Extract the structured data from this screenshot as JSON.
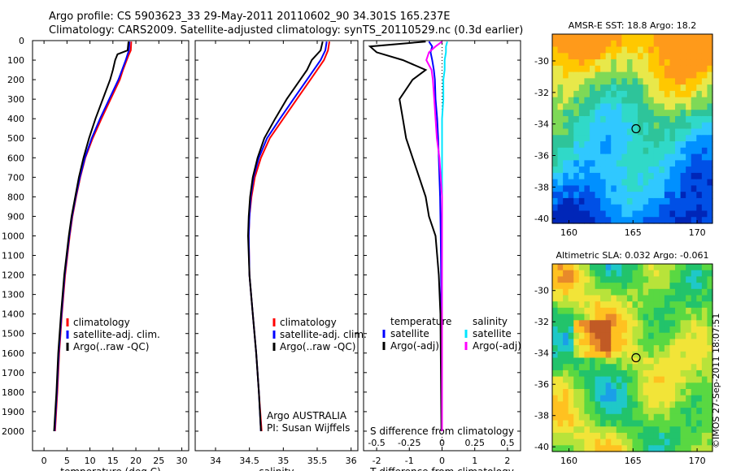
{
  "header": {
    "title_line1": "Argo profile: CS 5903623_33 29-May-2011 20110602_90 34.301S 165.237E",
    "title_line2": "Climatology: CARS2009. Satellite-adjusted climatology: synTS_20110529.nc (0.3d earlier)"
  },
  "footer": {
    "stamp": "©IMOS 27-Sep-2011 18:07:51",
    "argo_label": "Argo AUSTRALIA",
    "pi_label": "PI: Susan Wijffels"
  },
  "colors": {
    "climatology": "#ff0000",
    "satellite": "#0000ff",
    "argo": "#000000",
    "salinity_satellite": "#00e5ff",
    "salinity_argo": "#ff00ff"
  },
  "depth_ticks": [
    0,
    100,
    200,
    300,
    400,
    500,
    600,
    700,
    800,
    900,
    1000,
    1100,
    1200,
    1300,
    1400,
    1500,
    1600,
    1700,
    1800,
    1900,
    2000
  ],
  "chart_data": [
    {
      "id": "temperature",
      "type": "line",
      "xlabel": "temperature (deg C)",
      "ylabel": "",
      "xlim": [
        -2.5,
        31.5
      ],
      "ylim": [
        2100,
        0
      ],
      "xticks": [
        0,
        5,
        10,
        15,
        20,
        25,
        30
      ],
      "legend": [
        "climatology",
        "satellite-adj. clim.",
        "Argo(..raw -QC)"
      ],
      "legend_position": "lower-middle",
      "y": [
        5,
        50,
        70,
        100,
        150,
        200,
        300,
        400,
        500,
        600,
        700,
        800,
        900,
        1000,
        1200,
        1400,
        1600,
        1800,
        2000
      ],
      "series": [
        {
          "name": "climatology",
          "values": [
            19.0,
            18.9,
            18.5,
            18.0,
            17.2,
            16.5,
            14.5,
            12.5,
            10.6,
            9.0,
            7.9,
            7.0,
            6.2,
            5.6,
            4.6,
            3.9,
            3.3,
            2.9,
            2.4
          ]
        },
        {
          "name": "satellite-adj. clim.",
          "values": [
            18.6,
            18.5,
            18.2,
            17.8,
            17.0,
            16.2,
            14.2,
            12.2,
            10.4,
            8.9,
            7.8,
            6.9,
            6.1,
            5.5,
            4.5,
            3.8,
            3.2,
            2.8,
            2.3
          ]
        },
        {
          "name": "Argo(..raw -QC)",
          "values": [
            18.4,
            18.2,
            16.0,
            15.5,
            15.0,
            14.4,
            12.8,
            11.2,
            9.8,
            8.6,
            7.6,
            6.8,
            6.0,
            5.4,
            4.4,
            3.7,
            3.1,
            2.7,
            2.2
          ]
        }
      ]
    },
    {
      "id": "salinity",
      "type": "line",
      "xlabel": "salinity",
      "ylabel": "",
      "xlim": [
        33.7,
        36.1
      ],
      "ylim": [
        2100,
        0
      ],
      "xticks": [
        34,
        34.5,
        35,
        35.5,
        36
      ],
      "legend": [
        "climatology",
        "satellite-adj. clim.",
        "Argo(..raw -QC)"
      ],
      "legend_position": "lower-right",
      "y": [
        5,
        50,
        100,
        150,
        200,
        300,
        400,
        500,
        600,
        700,
        800,
        900,
        1000,
        1200,
        1400,
        1600,
        1800,
        2000
      ],
      "series": [
        {
          "name": "climatology",
          "values": [
            35.68,
            35.66,
            35.6,
            35.5,
            35.4,
            35.2,
            35.0,
            34.8,
            34.67,
            34.58,
            34.53,
            34.5,
            34.49,
            34.5,
            34.55,
            34.6,
            34.64,
            34.68
          ]
        },
        {
          "name": "satellite-adj. clim.",
          "values": [
            35.64,
            35.62,
            35.55,
            35.45,
            35.35,
            35.15,
            34.95,
            34.76,
            34.64,
            34.56,
            34.52,
            34.5,
            34.49,
            34.5,
            34.55,
            34.6,
            34.64,
            34.67
          ]
        },
        {
          "name": "Argo(..raw -QC)",
          "values": [
            35.58,
            35.55,
            35.42,
            35.35,
            35.25,
            35.05,
            34.88,
            34.72,
            34.62,
            34.55,
            34.51,
            34.49,
            34.48,
            34.5,
            34.55,
            34.6,
            34.64,
            34.67
          ]
        }
      ]
    },
    {
      "id": "difference",
      "type": "line",
      "xlabel": "T difference from climatology",
      "xlabel_top": "S difference from climatology",
      "ylabel": "",
      "xlim": [
        -2.4,
        2.4
      ],
      "ylim": [
        2100,
        0
      ],
      "xticks": [
        -2,
        -1,
        0,
        1,
        2
      ],
      "xticklabels": [
        "-2",
        "-1",
        "0",
        "1",
        "2"
      ],
      "sticks": [
        -0.5,
        -0.25,
        0,
        0.25,
        0.5
      ],
      "sticklabels": [
        "-0.5",
        "-0.25",
        "0",
        "0.25",
        "0.5"
      ],
      "legend": [
        "temperature",
        "satellite",
        "Argo(-adj)",
        "salinity",
        "satellite",
        "Argo(-adj)"
      ],
      "y": [
        5,
        30,
        60,
        100,
        150,
        200,
        300,
        400,
        500,
        600,
        700,
        800,
        900,
        1000,
        1200,
        1400,
        1600,
        1800,
        2000
      ],
      "series": [
        {
          "name": "satellite",
          "values": [
            -0.4,
            -0.3,
            -0.35,
            -0.3,
            -0.25,
            -0.22,
            -0.2,
            -0.15,
            -0.12,
            -0.1,
            -0.08,
            -0.06,
            -0.05,
            -0.04,
            -0.03,
            -0.02,
            -0.01,
            -0.01,
            0.0
          ]
        },
        {
          "name": "Argo(-adj)",
          "values": [
            -0.5,
            -2.2,
            -2.0,
            -1.2,
            -0.5,
            -0.9,
            -1.3,
            -1.2,
            -1.1,
            -0.9,
            -0.7,
            -0.5,
            -0.4,
            -0.2,
            -0.1,
            -0.05,
            -0.04,
            -0.03,
            -0.02
          ]
        },
        {
          "name": "satellite",
          "values": [
            0.04,
            0.03,
            0.03,
            0.02,
            0.02,
            0.01,
            0.01,
            0.0,
            0.0,
            0.0,
            0.0,
            0.0,
            0.0,
            0.0,
            0.0,
            0.0,
            0.0,
            0.0,
            0.0
          ]
        },
        {
          "name": "Argo(-adj)",
          "values": [
            0.0,
            -0.05,
            -0.1,
            -0.12,
            -0.08,
            -0.07,
            -0.06,
            -0.05,
            -0.04,
            -0.02,
            -0.01,
            0.0,
            0.0,
            0.0,
            0.0,
            0.0,
            0.0,
            0.0,
            0.0
          ]
        }
      ]
    },
    {
      "id": "sst_map",
      "type": "heatmap",
      "title": "AMSR-E SST: 18.8 Argo: 18.2",
      "xticks": [
        160,
        165,
        170
      ],
      "yticks": [
        -30,
        -32,
        -34,
        -36,
        -38,
        -40
      ],
      "xlim": [
        158.7,
        171.2
      ],
      "ylim": [
        -40.3,
        -28.3
      ],
      "marker": {
        "lon": 165.237,
        "lat": -34.301
      }
    },
    {
      "id": "sla_map",
      "type": "heatmap",
      "title": "Altimetric SLA: 0.032 Argo: -0.061",
      "xticks": [
        160,
        165,
        170
      ],
      "yticks": [
        -30,
        -32,
        -34,
        -36,
        -38,
        -40
      ],
      "xlim": [
        158.7,
        171.2
      ],
      "ylim": [
        -40.3,
        -28.3
      ],
      "marker": {
        "lon": 165.237,
        "lat": -34.301
      }
    }
  ]
}
